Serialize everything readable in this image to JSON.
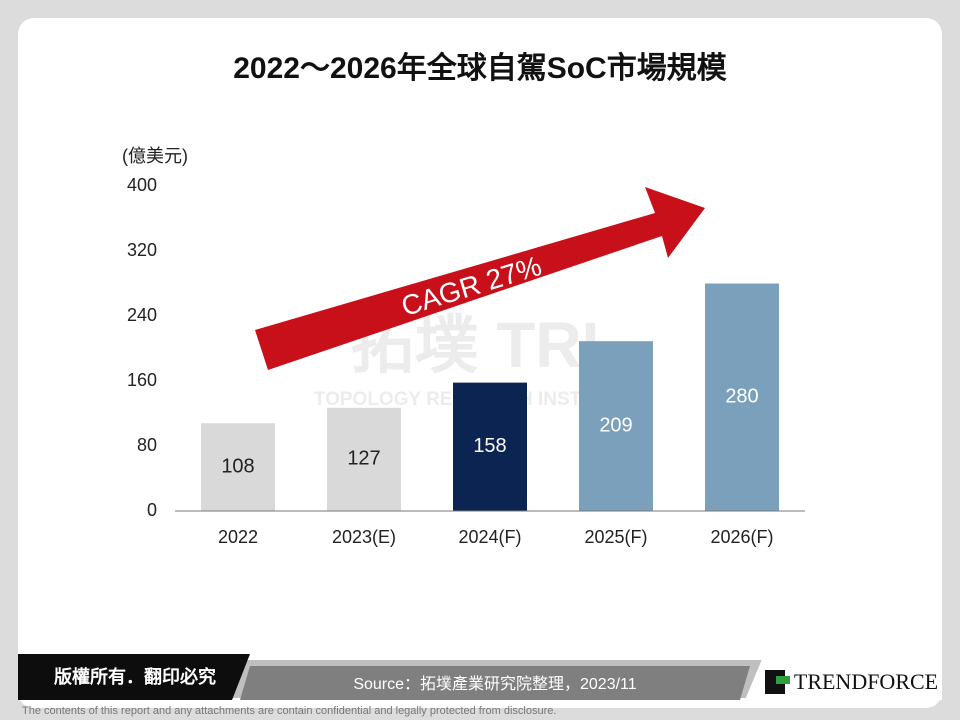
{
  "chart_data": {
    "type": "bar",
    "title": "2022～2026年全球自駕SoC市場規模",
    "y_label": "(億美元)",
    "categories": [
      "2022",
      "2023(E)",
      "2024(F)",
      "2025(F)",
      "2026(F)"
    ],
    "values": [
      108,
      127,
      158,
      209,
      280
    ],
    "colors": [
      "#d9d9d9",
      "#d9d9d9",
      "#0c2451",
      "#7aa0bc",
      "#7aa0bc"
    ],
    "label_colors": [
      "#222222",
      "#222222",
      "#ffffff",
      "#ffffff",
      "#ffffff"
    ],
    "ylim": [
      0,
      400
    ],
    "yticks": [
      0,
      80,
      160,
      240,
      320,
      400
    ],
    "grid": false,
    "annotation": "CAGR 27%",
    "watermark": {
      "logo": "拓墣 TRI",
      "name": "TOPOLOGY RESEARCH INSTITUTE"
    }
  },
  "footer": {
    "rights": "版權所有．翻印必究",
    "source": "Source：拓墣產業研究院整理，2023/11",
    "brand": "TRENDFORCE",
    "disclaimer": "The contents of this report and any attachments are contain confidential and legally protected from disclosure."
  }
}
